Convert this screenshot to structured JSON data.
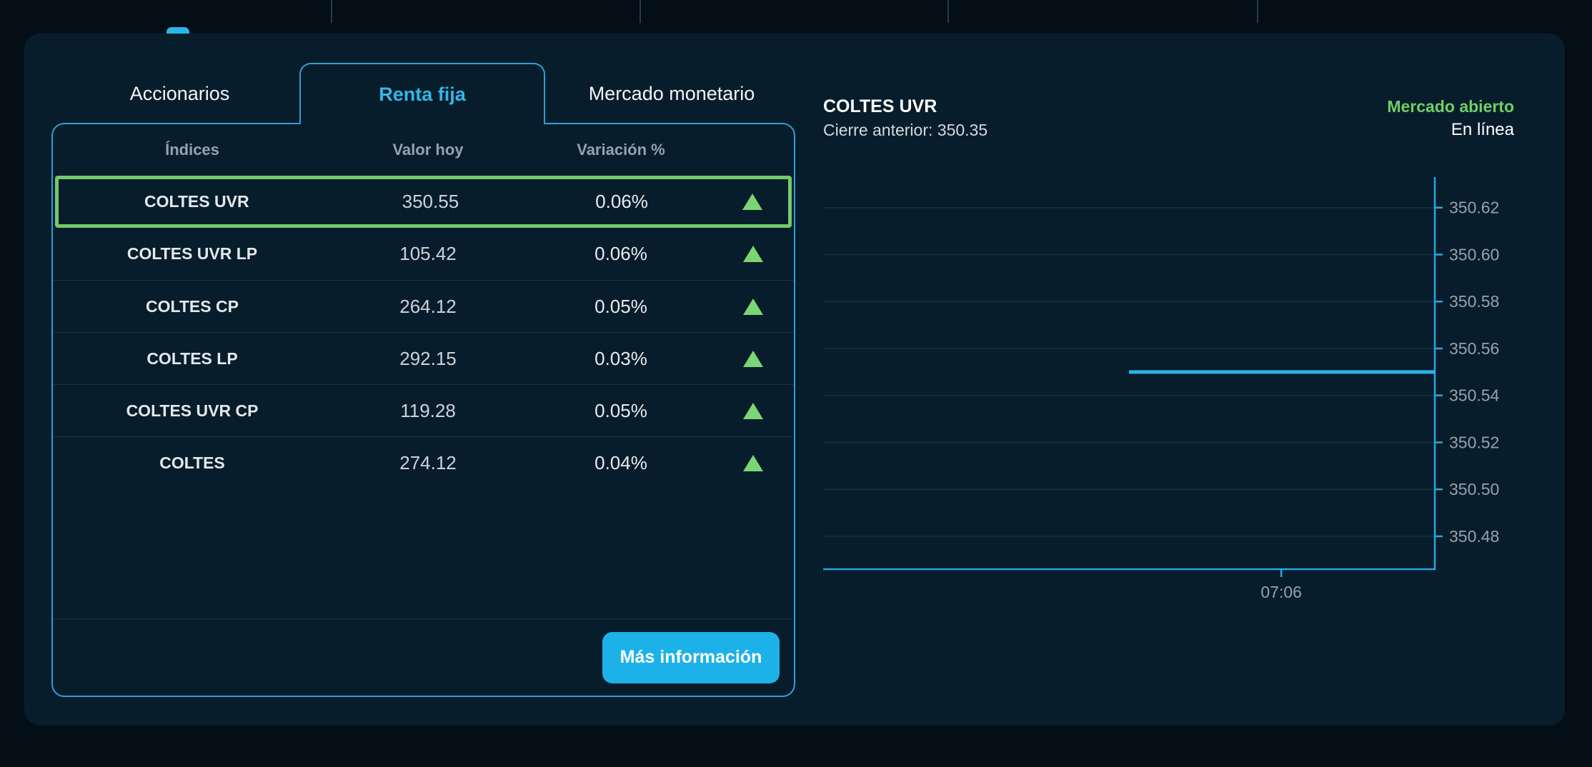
{
  "colors": {
    "accent_cyan": "#2cb3e6",
    "border_cyan": "#2f9fd6",
    "button_cyan": "#1db2e7",
    "selected_green": "#74ca6b",
    "triangle_green": "#7bd574",
    "status_green": "#6fcf66",
    "card_bg": "#081d2c",
    "page_bg": "#040e17"
  },
  "tabs": [
    {
      "label": "Accionarios",
      "active": false
    },
    {
      "label": "Renta fija",
      "active": true
    },
    {
      "label": "Mercado monetario",
      "active": false
    }
  ],
  "table": {
    "headers": [
      "Índices",
      "Valor hoy",
      "Variación %"
    ],
    "rows": [
      {
        "index": "COLTES UVR",
        "value": "350.55",
        "variation": "0.06%",
        "direction": "up",
        "selected": true
      },
      {
        "index": "COLTES UVR LP",
        "value": "105.42",
        "variation": "0.06%",
        "direction": "up",
        "selected": false
      },
      {
        "index": "COLTES CP",
        "value": "264.12",
        "variation": "0.05%",
        "direction": "up",
        "selected": false
      },
      {
        "index": "COLTES LP",
        "value": "292.15",
        "variation": "0.03%",
        "direction": "up",
        "selected": false
      },
      {
        "index": "COLTES UVR CP",
        "value": "119.28",
        "variation": "0.05%",
        "direction": "up",
        "selected": false
      },
      {
        "index": "COLTES",
        "value": "274.12",
        "variation": "0.04%",
        "direction": "up",
        "selected": false
      }
    ],
    "more_info_label": "Más información"
  },
  "detail": {
    "title": "COLTES UVR",
    "previous_close": "Cierre anterior: 350.35",
    "market_status": "Mercado abierto",
    "connection_status": "En línea"
  },
  "chart_data": {
    "type": "line",
    "series": [
      {
        "name": "COLTES UVR",
        "points": [
          {
            "x": 0.5,
            "y": 350.55
          },
          {
            "x": 1.0,
            "y": 350.55
          }
        ]
      }
    ],
    "ylim": [
      350.466,
      350.633
    ],
    "y_ticks": [
      "350.62",
      "350.60",
      "350.58",
      "350.56",
      "350.54",
      "350.52",
      "350.50",
      "350.48"
    ],
    "x_ticks": [
      {
        "pos": 0.749,
        "label": "07:06"
      }
    ],
    "grid": true,
    "axis_side": "right",
    "colors": {
      "axis": "#2aa6db",
      "grid": "rgba(150,163,173,0.14)",
      "tick_label": "#95a2ac",
      "line": "#2cb3e6"
    }
  }
}
